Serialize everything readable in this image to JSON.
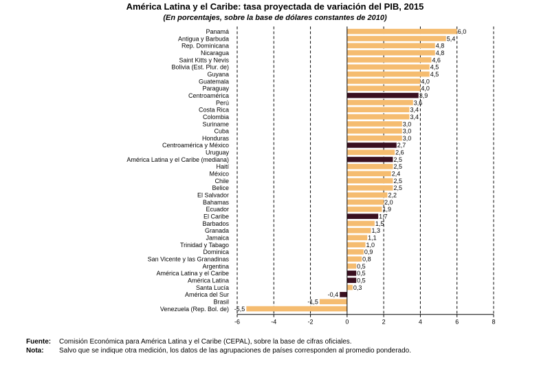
{
  "header": {
    "title": "América Latina y el Caribe: tasa proyectada de variación del PIB, 2015",
    "subtitle": "(En porcentajes, sobre la base de dólares constantes de 2010)"
  },
  "footer": {
    "source_label": "Fuente",
    "source_text": "Comisión Económica para América Latina y el Caribe (CEPAL), sobre la base de cifras oficiales.",
    "note_label": "Nota",
    "note_text": "Salvo que se indique otra medición, los datos de las agrupaciones de países corresponden al promedio ponderado."
  },
  "colors": {
    "country_bar": "#f5bc70",
    "aggregate_bar": "#3a1020",
    "gridline": "#000000"
  },
  "chart_data": {
    "type": "bar",
    "orientation": "horizontal",
    "title": "América Latina y el Caribe: tasa proyectada de variación del PIB, 2015",
    "subtitle": "(En porcentajes, sobre la base de dólares constantes de 2010)",
    "xlim": [
      -6,
      8
    ],
    "xticks": [
      -6,
      -4,
      -2,
      0,
      2,
      4,
      6,
      8
    ],
    "grid": "vertical dashed",
    "categories": [
      "Panamá",
      "Antigua y Barbuda",
      "Rep. Dominicana",
      "Nicaragua",
      "Saint Kitts y Nevis",
      "Bolivia (Est. Plur. de)",
      "Guyana",
      "Guatemala",
      "Paraguay",
      "Centroamérica",
      "Perú",
      "Costa Rica",
      "Colombia",
      "Suriname",
      "Cuba",
      "Honduras",
      "Centroamérica y México",
      "Uruguay",
      "América Latina y el Caribe (mediana)",
      "Haití",
      "México",
      "Chile",
      "Belice",
      "El Salvador",
      "Bahamas",
      "Ecuador",
      "El Caribe",
      "Barbados",
      "Granada",
      "Jamaica",
      "Trinidad y Tabago",
      "Dominica",
      "San Vicente y las Granadinas",
      "Argentina",
      "América Latina y el Caribe",
      "América Latina",
      "Santa Lucía",
      "América del Sur",
      "Brasil",
      "Venezuela (Rep. Bol. de)"
    ],
    "values": [
      6.0,
      5.4,
      4.8,
      4.8,
      4.6,
      4.5,
      4.5,
      4.0,
      4.0,
      3.9,
      3.6,
      3.4,
      3.4,
      3.0,
      3.0,
      3.0,
      2.7,
      2.6,
      2.5,
      2.5,
      2.4,
      2.5,
      2.5,
      2.2,
      2.0,
      1.9,
      1.7,
      1.5,
      1.3,
      1.1,
      1.0,
      0.9,
      0.8,
      0.5,
      0.5,
      0.5,
      0.3,
      -0.4,
      -1.5,
      -5.5
    ],
    "labels": [
      "6,0",
      "5,4",
      "4,8",
      "4,8",
      "4,6",
      "4,5",
      "4,5",
      "4,0",
      "4,0",
      "3,9",
      "3,6",
      "3,4",
      "3,4",
      "3,0",
      "3,0",
      "3,0",
      "2,7",
      "2,6",
      "2,5",
      "2,5",
      "2,4",
      "2,5",
      "2,5",
      "2,2",
      "2,0",
      "1,9",
      "1,7",
      "1,5",
      "1,3",
      "1,1",
      "1,0",
      "0,9",
      "0,8",
      "0,5",
      "0,5",
      "0,5",
      "0,3",
      "-0,4",
      "-1,5",
      "-5,5"
    ],
    "aggregate": [
      false,
      false,
      false,
      false,
      false,
      false,
      false,
      false,
      false,
      true,
      false,
      false,
      false,
      false,
      false,
      false,
      true,
      false,
      true,
      false,
      false,
      false,
      false,
      false,
      false,
      false,
      true,
      false,
      false,
      false,
      false,
      false,
      false,
      false,
      true,
      true,
      false,
      true,
      false,
      false
    ]
  }
}
